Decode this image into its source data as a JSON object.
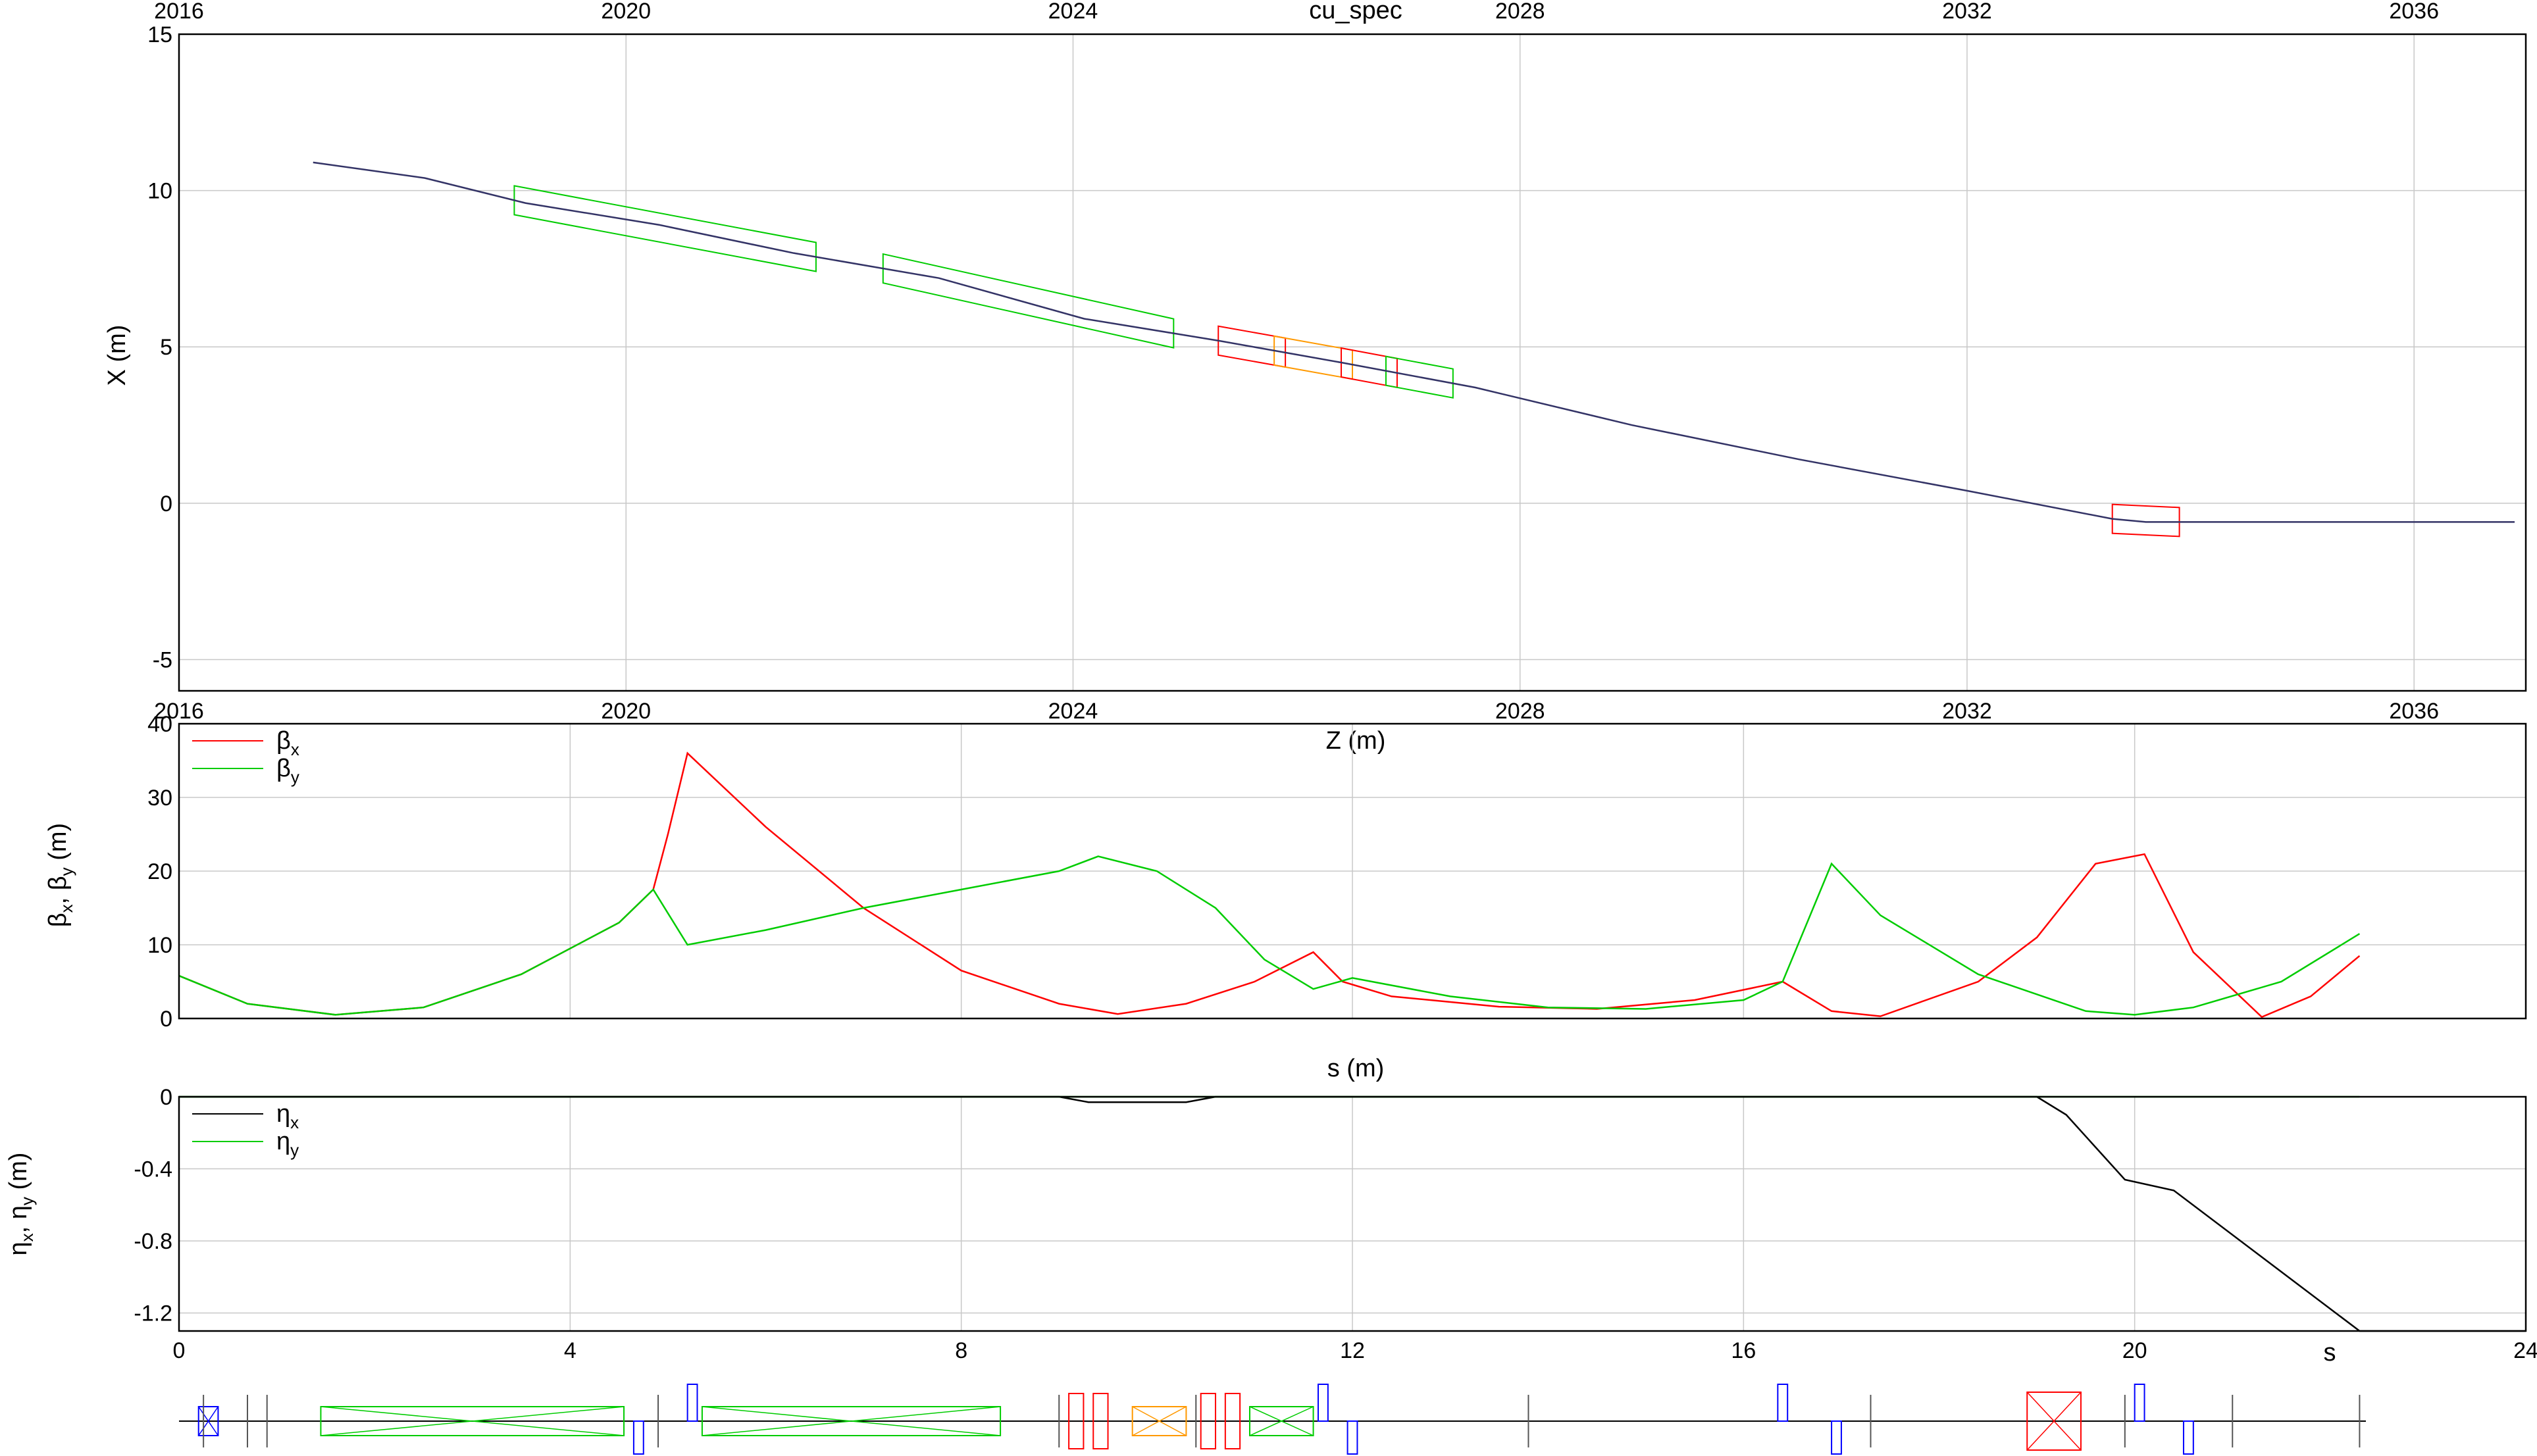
{
  "chart_data": [
    {
      "type": "line",
      "title": "cu_spec",
      "xlabel": "Z (m)",
      "ylabel": "X (m)",
      "xlim": [
        2016,
        2037
      ],
      "ylim": [
        -6,
        15
      ],
      "x_ticks": [
        "2016",
        "2020",
        "2024",
        "2028",
        "2032",
        "2036"
      ],
      "y_ticks": [
        "15",
        "10",
        "5",
        "0",
        "-5"
      ],
      "series": [
        {
          "x": [
            2017.2,
            2018.2,
            2019.1,
            2020.3,
            2021.5,
            2022.8,
            2024.1,
            2025.3,
            2026.4,
            2027.6,
            2029.0,
            2030.5,
            2032.0,
            2033.3,
            2033.6,
            2034.5,
            2035.2,
            2036.9
          ],
          "y": [
            10.9,
            10.4,
            9.6,
            8.9,
            8.0,
            7.2,
            5.9,
            5.2,
            4.5,
            3.7,
            2.5,
            1.4,
            0.4,
            -0.5,
            -0.6,
            -0.6,
            -0.6,
            -0.6
          ]
        }
      ],
      "elements": [
        {
          "kind": "bend",
          "z0": 2019.0,
          "z1": 2021.7,
          "color": "#00cc00"
        },
        {
          "kind": "bend",
          "z0": 2022.3,
          "z1": 2024.9,
          "color": "#00cc00"
        },
        {
          "kind": "quad",
          "z0": 2025.3,
          "z1": 2025.9,
          "color": "#ff0000"
        },
        {
          "kind": "bend",
          "z0": 2025.8,
          "z1": 2026.5,
          "color": "#ff9900"
        },
        {
          "kind": "quad",
          "z0": 2026.4,
          "z1": 2026.9,
          "color": "#ff0000"
        },
        {
          "kind": "bend",
          "z0": 2026.8,
          "z1": 2027.4,
          "color": "#00cc00"
        },
        {
          "kind": "bend",
          "z0": 2033.3,
          "z1": 2033.9,
          "color": "#ff0000"
        }
      ]
    },
    {
      "type": "line",
      "xlabel": "s (m)",
      "ylabel": "βx, βy (m)",
      "xlim": [
        0,
        24
      ],
      "ylim": [
        0,
        40
      ],
      "y_ticks": [
        "40",
        "30",
        "20",
        "10",
        "0"
      ],
      "legend": "top-left",
      "series": [
        {
          "name": "βx",
          "color": "#ff0000",
          "x": [
            0,
            0.7,
            1.6,
            2.5,
            3.5,
            4.5,
            4.85,
            5.0,
            5.2,
            6.0,
            7.0,
            8.0,
            9.0,
            9.6,
            10.3,
            11.0,
            11.6,
            11.9,
            12.4,
            13.5,
            14.5,
            15.5,
            16.4,
            16.9,
            17.4,
            18.4,
            19.0,
            19.6,
            20.1,
            20.6,
            21.3,
            21.8,
            22.3
          ],
          "y": [
            5.8,
            2.0,
            0.5,
            1.5,
            6.0,
            13.0,
            17.5,
            25.0,
            36.0,
            26.0,
            15.0,
            6.5,
            2.0,
            0.6,
            2.0,
            5.0,
            9.0,
            5.0,
            3.0,
            1.6,
            1.3,
            2.5,
            5.0,
            1.0,
            0.3,
            5.0,
            11.0,
            21.0,
            22.3,
            9.0,
            0.2,
            3.0,
            8.5
          ]
        },
        {
          "name": "βy",
          "color": "#00cc00",
          "x": [
            0,
            0.7,
            1.6,
            2.5,
            3.5,
            4.5,
            4.85,
            5.2,
            6.0,
            7.0,
            8.0,
            9.0,
            9.4,
            10.0,
            10.6,
            11.1,
            11.6,
            12.0,
            13.0,
            14.0,
            15.0,
            16.0,
            16.4,
            16.9,
            17.4,
            18.4,
            19.5,
            20.0,
            20.6,
            21.5,
            22.3
          ],
          "y": [
            5.8,
            2.0,
            0.5,
            1.5,
            6.0,
            13.0,
            17.5,
            10.0,
            12.0,
            15.0,
            17.5,
            20.0,
            22.0,
            20.0,
            15.0,
            8.0,
            4.0,
            5.5,
            3.0,
            1.5,
            1.3,
            2.5,
            5.0,
            21.0,
            14.0,
            6.0,
            1.0,
            0.5,
            1.5,
            5.0,
            11.5
          ]
        }
      ]
    },
    {
      "type": "line",
      "xlabel": "s",
      "ylabel": "ηx, ηy (m)",
      "xlim": [
        0,
        24
      ],
      "ylim": [
        -1.3,
        0
      ],
      "x_ticks": [
        "0",
        "4",
        "8",
        "12",
        "16",
        "20",
        "24"
      ],
      "y_ticks": [
        "0",
        "-0.4",
        "-0.8",
        "-1.2"
      ],
      "legend": "top-left",
      "series": [
        {
          "name": "ηx",
          "color": "#000000",
          "x": [
            0,
            9.0,
            9.3,
            10.3,
            10.6,
            19.0,
            19.3,
            19.9,
            20.4,
            22.3,
            24.0
          ],
          "y": [
            0,
            0,
            -0.03,
            -0.03,
            0,
            0,
            -0.1,
            -0.46,
            -0.52,
            -1.3,
            -1.3
          ]
        },
        {
          "name": "ηy",
          "color": "#00cc00",
          "x": [
            0,
            22.3
          ],
          "y": [
            0,
            0
          ]
        }
      ]
    }
  ],
  "legend": {
    "beta_x": "β",
    "beta_x_sub": "x",
    "beta_y": "β",
    "beta_y_sub": "y",
    "eta_x": "η",
    "eta_x_sub": "x",
    "eta_y": "η",
    "eta_y_sub": "y"
  },
  "axis_labels": {
    "top_ylabel": "X (m)",
    "mid_ylabel_beta": "β",
    "mid_ylabel_sub_x": "x",
    "mid_ylabel_sep": ", β",
    "mid_ylabel_sub_y": "y",
    "mid_ylabel_unit": " (m)",
    "bot_ylabel_eta": "η",
    "bot_ylabel_sub_x": "x",
    "bot_ylabel_sep": ", η",
    "bot_ylabel_sub_y": "y",
    "bot_ylabel_unit": " (m)"
  },
  "lattice": [
    {
      "s0": 0.2,
      "s1": 0.4,
      "type": "solenoid",
      "color": "#0000ff"
    },
    {
      "s0": 1.45,
      "s1": 4.55,
      "type": "bend",
      "color": "#00cc00"
    },
    {
      "s0": 4.65,
      "s1": 4.75,
      "type": "quad-",
      "color": "#0000ff"
    },
    {
      "s0": 5.2,
      "s1": 5.3,
      "type": "quad+",
      "color": "#0000ff"
    },
    {
      "s0": 5.35,
      "s1": 8.4,
      "type": "bend",
      "color": "#00cc00"
    },
    {
      "s0": 9.1,
      "s1": 9.25,
      "type": "quad",
      "color": "#ff0000"
    },
    {
      "s0": 9.35,
      "s1": 9.5,
      "type": "quad",
      "color": "#ff0000"
    },
    {
      "s0": 9.75,
      "s1": 10.3,
      "type": "bend",
      "color": "#ff9900"
    },
    {
      "s0": 10.45,
      "s1": 10.6,
      "type": "quad",
      "color": "#ff0000"
    },
    {
      "s0": 10.7,
      "s1": 10.85,
      "type": "quad",
      "color": "#ff0000"
    },
    {
      "s0": 10.95,
      "s1": 11.6,
      "type": "bend",
      "color": "#00cc00"
    },
    {
      "s0": 11.65,
      "s1": 11.75,
      "type": "quad+",
      "color": "#0000ff"
    },
    {
      "s0": 11.95,
      "s1": 12.05,
      "type": "quad-",
      "color": "#0000ff"
    },
    {
      "s0": 16.35,
      "s1": 16.45,
      "type": "quad+",
      "color": "#0000ff"
    },
    {
      "s0": 16.9,
      "s1": 17.0,
      "type": "quad-",
      "color": "#0000ff"
    },
    {
      "s0": 18.9,
      "s1": 19.45,
      "type": "bend",
      "color": "#ff0000"
    },
    {
      "s0": 20.0,
      "s1": 20.1,
      "type": "quad+",
      "color": "#0000ff"
    },
    {
      "s0": 20.5,
      "s1": 20.6,
      "type": "quad-",
      "color": "#0000ff"
    }
  ]
}
